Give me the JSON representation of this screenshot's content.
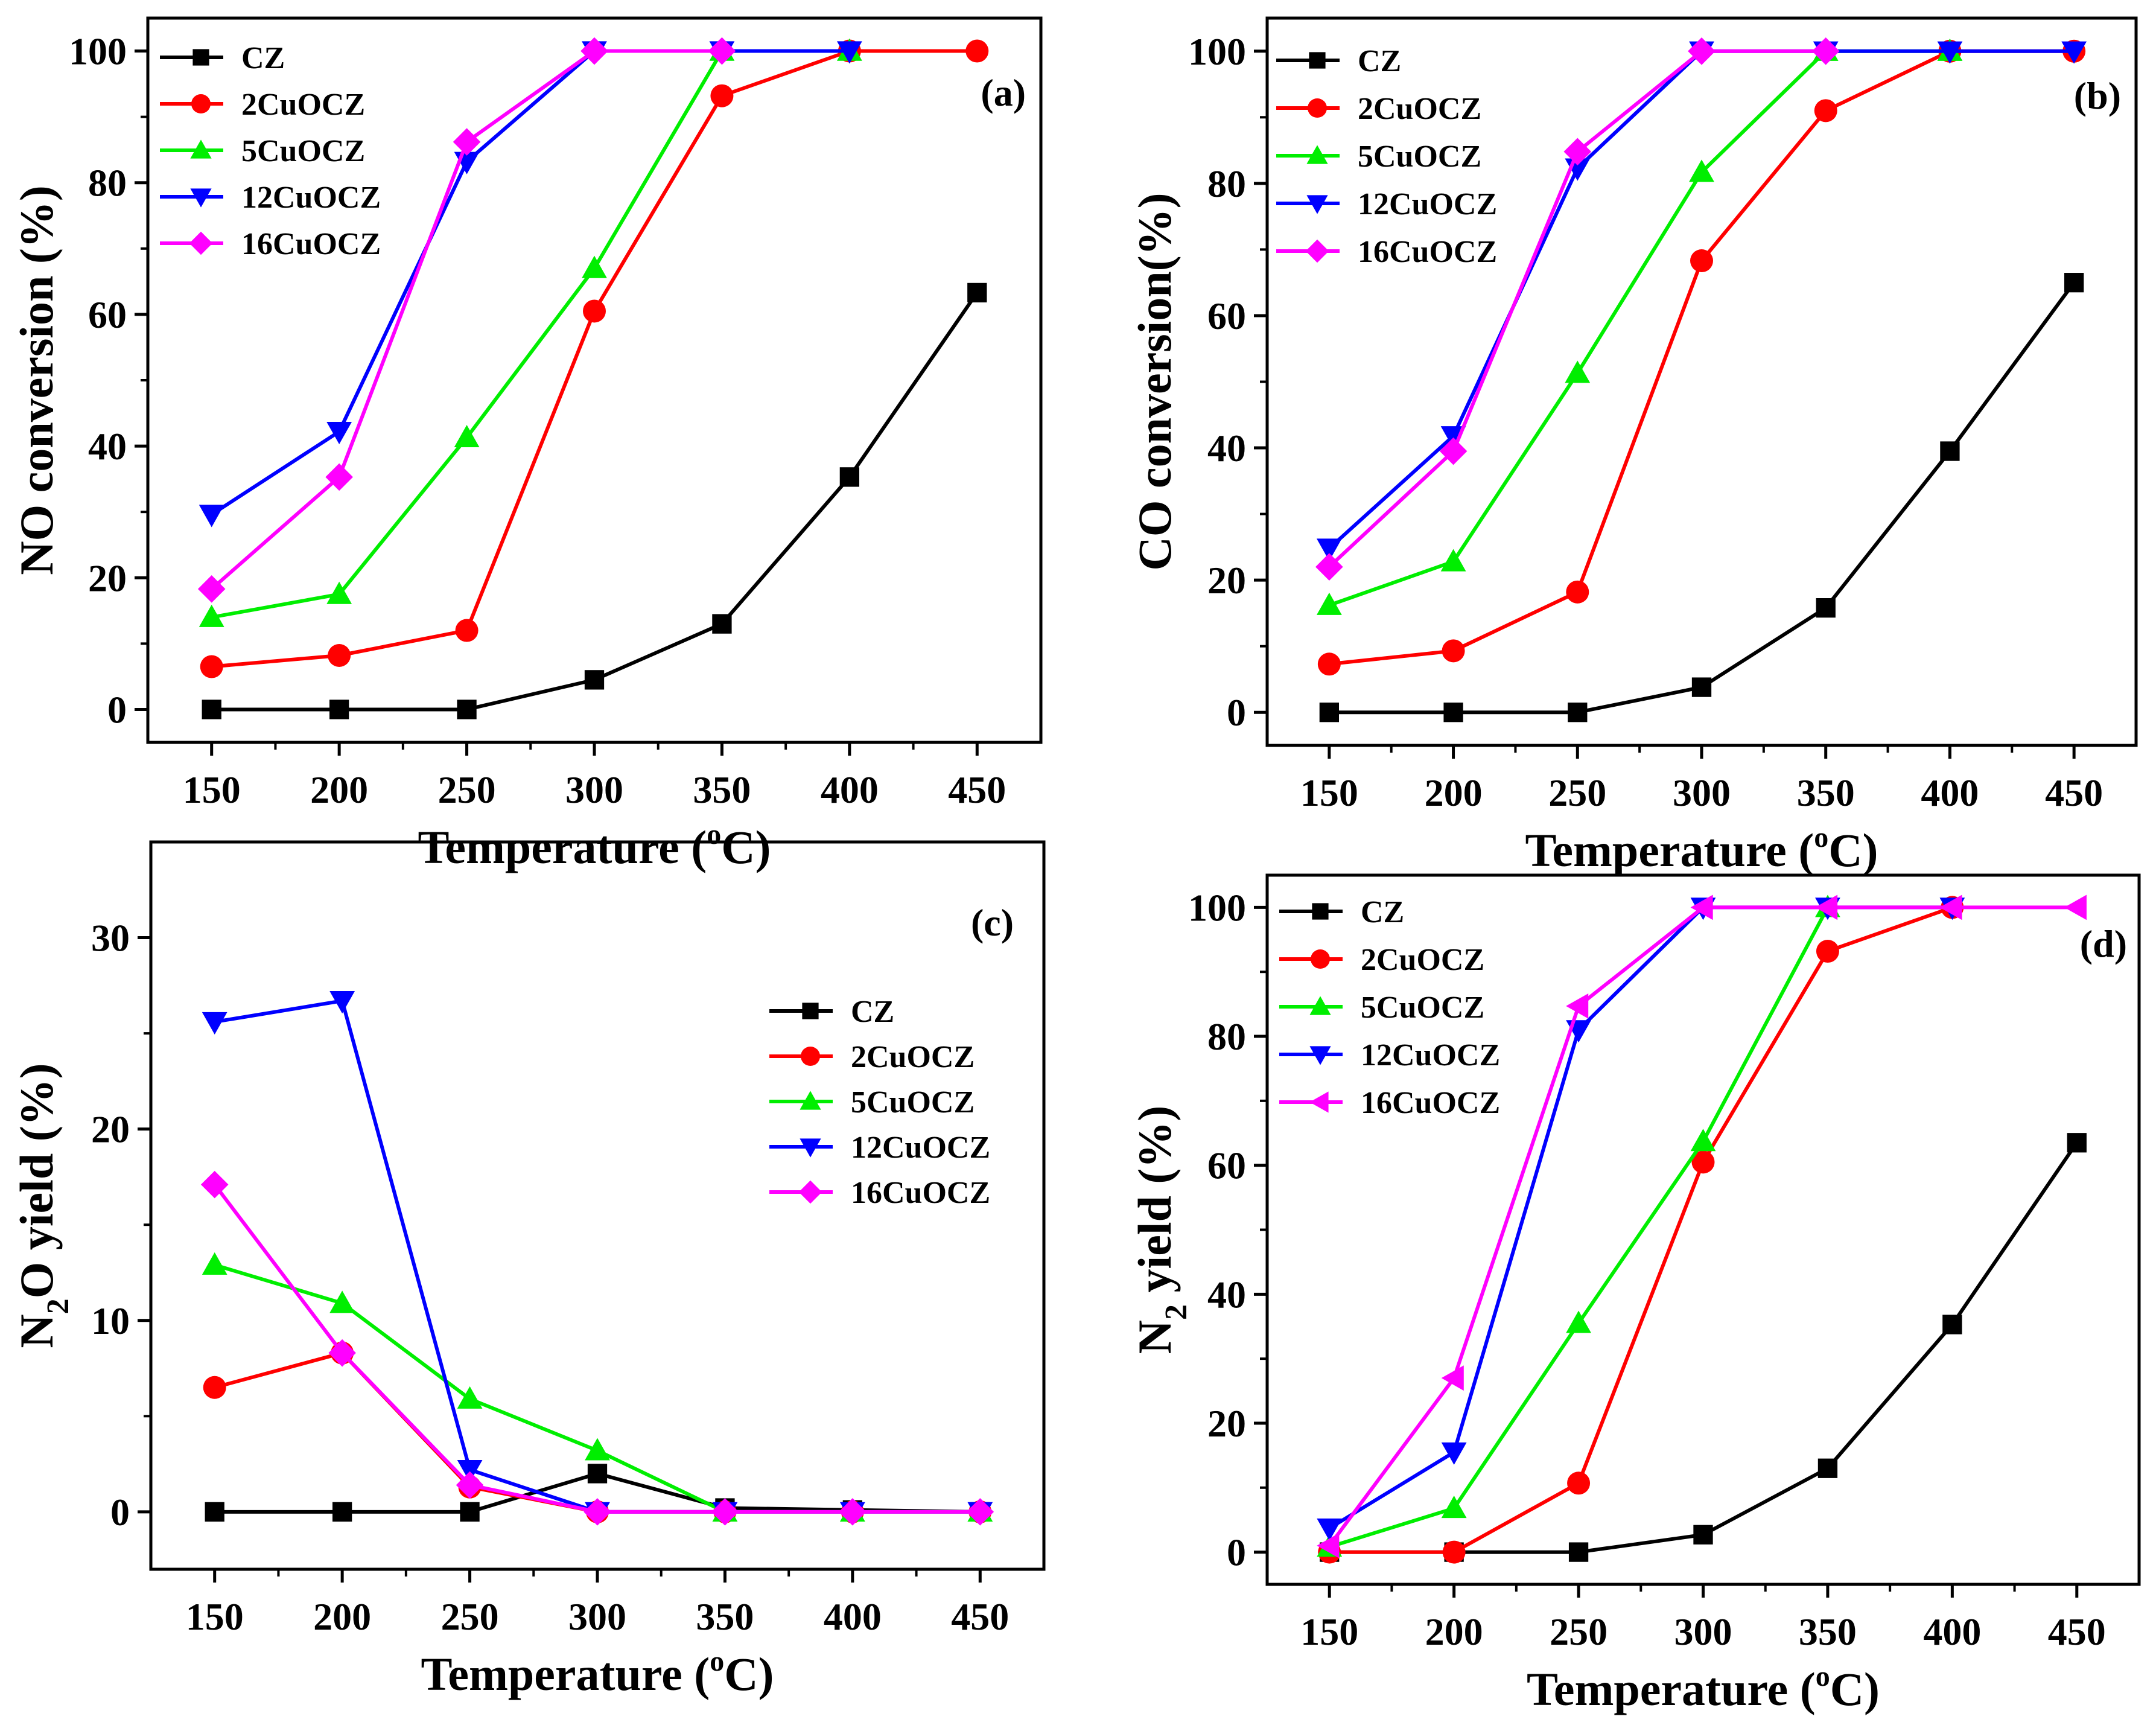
{
  "figure": {
    "colors": {
      "CZ": "#000000",
      "2CuOCZ": "#ff0000",
      "5CuOCZ": "#00ee00",
      "12CuOCZ": "#0000ff",
      "16CuOCZ": "#ff00ff"
    }
  },
  "chart_data": [
    {
      "id": "a",
      "type": "line",
      "panel_label": "(a)",
      "xlabel": "Temperature (°C)",
      "xlabel_main": "Temperature (",
      "xlabel_sup": "o",
      "xlabel_end": "C)",
      "ylabel": "NO conversion (%)",
      "ylabel_parts": [
        {
          "t": "NO conversion (%)",
          "sub": false
        }
      ],
      "xlim": [
        125,
        475
      ],
      "ylim": [
        -5,
        105
      ],
      "xticks": [
        150,
        200,
        250,
        300,
        350,
        400,
        450
      ],
      "yticks": [
        0,
        20,
        40,
        60,
        80,
        100
      ],
      "legend": "top-left",
      "x": [
        150,
        200,
        250,
        300,
        350,
        400,
        450
      ],
      "series": [
        {
          "name": "CZ",
          "marker": "square",
          "values": [
            0,
            0,
            0,
            4.5,
            13,
            35.3,
            63.3
          ]
        },
        {
          "name": "2CuOCZ",
          "marker": "circle",
          "values": [
            6.5,
            8.2,
            12,
            60.5,
            93.2,
            100,
            100
          ]
        },
        {
          "name": "5CuOCZ",
          "marker": "triangle-up",
          "values": [
            14,
            17.5,
            41.3,
            67,
            100,
            100,
            null
          ]
        },
        {
          "name": "12CuOCZ",
          "marker": "triangle-down",
          "values": [
            29.6,
            42.2,
            83.2,
            100,
            100,
            100,
            null
          ]
        },
        {
          "name": "16CuOCZ",
          "marker": "diamond",
          "values": [
            18.3,
            35.3,
            86.2,
            100,
            100,
            null,
            null
          ]
        }
      ]
    },
    {
      "id": "b",
      "type": "line",
      "panel_label": "(b)",
      "xlabel": "Temperature (°C)",
      "xlabel_main": "Temperature (",
      "xlabel_sup": "o",
      "xlabel_end": "C)",
      "ylabel": "CO conversion(%)",
      "ylabel_parts": [
        {
          "t": "CO conversion(%)",
          "sub": false
        }
      ],
      "xlim": [
        125,
        475
      ],
      "ylim": [
        -5,
        105
      ],
      "xticks": [
        150,
        200,
        250,
        300,
        350,
        400,
        450
      ],
      "yticks": [
        0,
        20,
        40,
        60,
        80,
        100
      ],
      "legend": "top-left",
      "x": [
        150,
        200,
        250,
        300,
        350,
        400,
        450
      ],
      "series": [
        {
          "name": "CZ",
          "marker": "square",
          "values": [
            0,
            0,
            0,
            3.8,
            15.8,
            39.5,
            65
          ]
        },
        {
          "name": "2CuOCZ",
          "marker": "circle",
          "values": [
            7.3,
            9.3,
            18.2,
            68.3,
            91,
            100,
            100
          ]
        },
        {
          "name": "5CuOCZ",
          "marker": "triangle-up",
          "values": [
            16.2,
            22.8,
            51.3,
            81.7,
            100,
            100,
            null
          ]
        },
        {
          "name": "12CuOCZ",
          "marker": "triangle-down",
          "values": [
            24.8,
            41.8,
            82.3,
            100,
            100,
            100,
            100
          ]
        },
        {
          "name": "16CuOCZ",
          "marker": "diamond",
          "values": [
            22,
            39.5,
            84.8,
            100,
            100,
            null,
            null
          ]
        }
      ]
    },
    {
      "id": "c",
      "type": "line",
      "panel_label": "(c)",
      "xlabel": "Temperature (°C)",
      "xlabel_main": "Temperature (",
      "xlabel_sup": "o",
      "xlabel_end": "C)",
      "ylabel": "N2O yield (%)",
      "ylabel_parts": [
        {
          "t": "N",
          "sub": false
        },
        {
          "t": "2",
          "sub": true
        },
        {
          "t": "O yield (%)",
          "sub": false
        }
      ],
      "xlim": [
        125,
        475
      ],
      "ylim": [
        -3,
        35
      ],
      "xticks": [
        150,
        200,
        250,
        300,
        350,
        400,
        450
      ],
      "yticks": [
        0,
        10,
        20,
        30
      ],
      "legend": "center-right",
      "x": [
        150,
        200,
        250,
        300,
        350,
        400,
        450
      ],
      "series": [
        {
          "name": "CZ",
          "marker": "square",
          "values": [
            0,
            0,
            0,
            2,
            0.2,
            0.1,
            0
          ]
        },
        {
          "name": "2CuOCZ",
          "marker": "circle",
          "values": [
            6.5,
            8.3,
            1.3,
            0,
            0,
            0,
            0
          ]
        },
        {
          "name": "5CuOCZ",
          "marker": "triangle-up",
          "values": [
            12.9,
            10.9,
            5.9,
            3.2,
            0,
            0,
            0
          ]
        },
        {
          "name": "12CuOCZ",
          "marker": "triangle-down",
          "values": [
            25.6,
            26.7,
            2.2,
            0,
            0,
            0,
            0
          ]
        },
        {
          "name": "16CuOCZ",
          "marker": "diamond",
          "values": [
            17.1,
            8.3,
            1.4,
            0,
            0,
            0,
            0
          ]
        }
      ]
    },
    {
      "id": "d",
      "type": "line",
      "panel_label": "(d)",
      "xlabel": "Temperature (°C)",
      "xlabel_main": "Temperature (",
      "xlabel_sup": "o",
      "xlabel_end": "C)",
      "ylabel": "N2 yield (%)",
      "ylabel_parts": [
        {
          "t": "N",
          "sub": false
        },
        {
          "t": "2",
          "sub": true
        },
        {
          "t": " yield (%)",
          "sub": false
        }
      ],
      "xlim": [
        125,
        475
      ],
      "ylim": [
        -5,
        105
      ],
      "xticks": [
        150,
        200,
        250,
        300,
        350,
        400,
        450
      ],
      "yticks": [
        0,
        20,
        40,
        60,
        80,
        100
      ],
      "legend": "top-left",
      "x": [
        150,
        200,
        250,
        300,
        350,
        400,
        450
      ],
      "series": [
        {
          "name": "CZ",
          "marker": "square",
          "values": [
            0,
            0,
            0,
            2.7,
            13,
            35.3,
            63.5
          ]
        },
        {
          "name": "2CuOCZ",
          "marker": "circle",
          "values": [
            0,
            0,
            10.7,
            60.5,
            93.2,
            100,
            null
          ]
        },
        {
          "name": "5CuOCZ",
          "marker": "triangle-up",
          "values": [
            0.8,
            6.8,
            35.5,
            63.7,
            100,
            null,
            null
          ]
        },
        {
          "name": "12CuOCZ",
          "marker": "triangle-down",
          "values": [
            3.7,
            15.5,
            81,
            100,
            100,
            100,
            null
          ]
        },
        {
          "name": "16CuOCZ",
          "marker": "triangle-left",
          "values": [
            1,
            27,
            84.7,
            100,
            100,
            100,
            100
          ]
        }
      ]
    }
  ]
}
